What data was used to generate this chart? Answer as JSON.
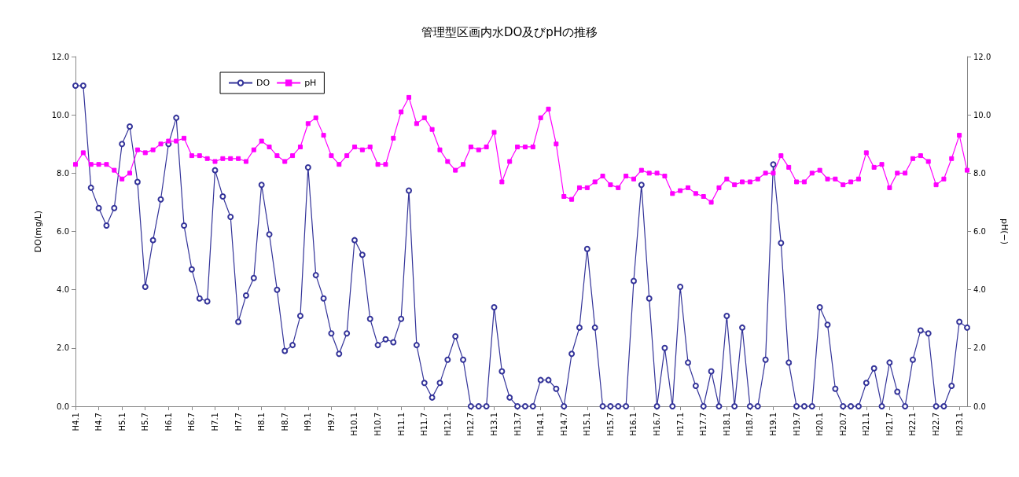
{
  "chart_data": {
    "type": "line",
    "title": "管理型区画内水DO及びpHの推移",
    "ylabel": "DO(mg/L)",
    "y2label": "pH(−)",
    "categories": [
      "H4.1",
      null,
      null,
      "H4.7",
      null,
      null,
      "H5.1",
      null,
      null,
      "H5.7",
      null,
      null,
      "H6.1",
      null,
      null,
      "H6.7",
      null,
      null,
      "H7.1",
      null,
      null,
      "H7.7",
      null,
      null,
      "H8.1",
      null,
      null,
      "H8.7",
      null,
      null,
      "H9.1",
      null,
      null,
      "H9.7",
      null,
      null,
      "H10.1",
      null,
      null,
      "H10.7",
      null,
      null,
      "H11.1",
      null,
      null,
      "H11.7",
      null,
      null,
      "H12.1",
      null,
      null,
      "H12.7",
      null,
      null,
      "H13.1",
      null,
      null,
      "H13.7",
      null,
      null,
      "H14.1",
      null,
      null,
      "H14.7",
      null,
      null,
      "H15.1",
      null,
      null,
      "H15.7",
      null,
      null,
      "H16.1",
      null,
      null,
      "H16.7",
      null,
      null,
      "H17.1",
      null,
      null,
      "H17.7",
      null,
      null,
      "H18.1",
      null,
      null,
      "H18.7",
      null,
      null,
      "H19.1",
      null,
      null,
      "H19.7",
      null,
      null,
      "H20.1",
      null,
      null,
      "H20.7",
      null,
      null,
      "H21.1",
      null,
      null,
      "H21.7",
      null,
      null,
      "H22.1",
      null,
      null,
      "H22.7",
      null,
      null,
      "H23.1",
      null
    ],
    "series": [
      {
        "name": "DO",
        "color": "#333399",
        "marker": "circle",
        "values": [
          11.0,
          11.0,
          7.5,
          6.8,
          6.2,
          6.8,
          9.0,
          9.6,
          7.7,
          4.1,
          5.7,
          7.1,
          9.0,
          9.9,
          6.2,
          4.7,
          3.7,
          3.6,
          8.1,
          7.2,
          6.5,
          2.9,
          3.8,
          4.4,
          7.6,
          5.9,
          4.0,
          1.9,
          2.1,
          3.1,
          8.2,
          4.5,
          3.7,
          2.5,
          1.8,
          2.5,
          5.7,
          5.2,
          3.0,
          2.1,
          2.3,
          2.2,
          3.0,
          7.4,
          2.1,
          0.8,
          0.3,
          0.8,
          1.6,
          2.4,
          1.6,
          0.0,
          0.0,
          0.0,
          3.4,
          1.2,
          0.3,
          0.0,
          0.0,
          0.0,
          0.9,
          0.9,
          0.6,
          0.0,
          1.8,
          2.7,
          5.4,
          2.7,
          0.0,
          0.0,
          0.0,
          0.0,
          4.3,
          7.6,
          3.7,
          0.0,
          2.0,
          0.0,
          4.1,
          1.5,
          0.7,
          0.0,
          1.2,
          0.0,
          3.1,
          0.0,
          2.7,
          0.0,
          0.0,
          1.6,
          8.3,
          5.6,
          1.5,
          0.0,
          0.0,
          0.0,
          3.4,
          2.8,
          0.6,
          0.0,
          0.0,
          0.0,
          0.8,
          1.3,
          0.0,
          1.5,
          0.5,
          0.0,
          1.6,
          2.6,
          2.5,
          0.0,
          0.0,
          0.7,
          2.9,
          2.7
        ]
      },
      {
        "name": "pH",
        "color": "#ff00ff",
        "marker": "square",
        "axis": "y2",
        "values": [
          8.3,
          8.7,
          8.3,
          8.3,
          8.3,
          8.1,
          7.8,
          8.0,
          8.8,
          8.7,
          8.8,
          9.0,
          9.1,
          9.1,
          9.2,
          8.6,
          8.6,
          8.5,
          8.4,
          8.5,
          8.5,
          8.5,
          8.4,
          8.8,
          9.1,
          8.9,
          8.6,
          8.4,
          8.6,
          8.9,
          9.7,
          9.9,
          9.3,
          8.6,
          8.3,
          8.6,
          8.9,
          8.8,
          8.9,
          8.3,
          8.3,
          9.2,
          10.1,
          10.6,
          9.7,
          9.9,
          9.5,
          8.8,
          8.4,
          8.1,
          8.3,
          8.9,
          8.8,
          8.9,
          9.4,
          7.7,
          8.4,
          8.9,
          8.9,
          8.9,
          9.9,
          10.2,
          9.0,
          7.2,
          7.1,
          7.5,
          7.5,
          7.7,
          7.9,
          7.6,
          7.5,
          7.9,
          7.8,
          8.1,
          8.0,
          8.0,
          7.9,
          7.3,
          7.4,
          7.5,
          7.3,
          7.2,
          7.0,
          7.5,
          7.8,
          7.6,
          7.7,
          7.7,
          7.8,
          8.0,
          8.0,
          8.6,
          8.2,
          7.7,
          7.7,
          8.0,
          8.1,
          7.8,
          7.8,
          7.6,
          7.7,
          7.8,
          8.7,
          8.2,
          8.3,
          7.5,
          8.0,
          8.0,
          8.5,
          8.6,
          8.4,
          7.6,
          7.8,
          8.5,
          9.3,
          8.1
        ]
      }
    ],
    "ylim": [
      0,
      12
    ],
    "yticks": [
      {
        "value": 0,
        "label": "0.0"
      },
      {
        "value": 2,
        "label": "2.0"
      },
      {
        "value": 4,
        "label": "4.0"
      },
      {
        "value": 6,
        "label": "6.0"
      },
      {
        "value": 8,
        "label": "8.0"
      },
      {
        "value": 10,
        "label": "10.0"
      },
      {
        "value": 12,
        "label": "12.0"
      }
    ],
    "y2lim": [
      0,
      12
    ],
    "y2ticks": [
      {
        "value": 0,
        "label": "0.0"
      },
      {
        "value": 2,
        "label": "2.0"
      },
      {
        "value": 4,
        "label": "4.0"
      },
      {
        "value": 6,
        "label": "6.0"
      },
      {
        "value": 8,
        "label": "8.0"
      },
      {
        "value": 10,
        "label": "10.0"
      },
      {
        "value": 12,
        "label": "12.0"
      }
    ],
    "legend": "top left",
    "grid": false,
    "line_style": "solid"
  }
}
